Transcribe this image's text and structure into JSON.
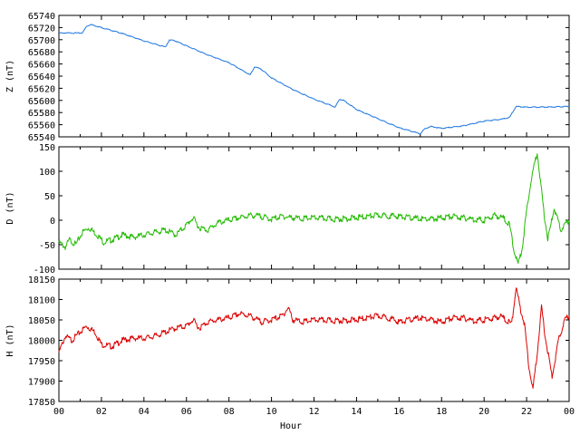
{
  "chart_data": [
    {
      "type": "line",
      "ylabel": "Z (nT)",
      "ylim": [
        65540,
        65740
      ],
      "yticks": [
        65540,
        65560,
        65580,
        65600,
        65620,
        65640,
        65660,
        65680,
        65700,
        65720,
        65740
      ],
      "xlim": [
        0,
        24
      ],
      "grid": false,
      "series": [
        {
          "color": "#1f77e0",
          "x": [
            0,
            0.5,
            1.1,
            1.3,
            1.5,
            2,
            3,
            4,
            5,
            5.2,
            5.4,
            6,
            7,
            8,
            9,
            9.2,
            9.5,
            10,
            11,
            12,
            13,
            13.2,
            13.4,
            14,
            15,
            16,
            17,
            17.2,
            17.5,
            18,
            19,
            20,
            20.8,
            21.2,
            21.5,
            22,
            23,
            24
          ],
          "y": [
            65711,
            65711,
            65711,
            65722,
            65725,
            65720,
            65710,
            65698,
            65688,
            65699,
            65699,
            65690,
            65675,
            65662,
            65642,
            65655,
            65652,
            65637,
            65618,
            65602,
            65589,
            65602,
            65600,
            65585,
            65570,
            65555,
            65545,
            65553,
            65557,
            65554,
            65558,
            65566,
            65569,
            65572,
            65590,
            65589,
            65589,
            65590
          ]
        }
      ]
    },
    {
      "type": "line",
      "ylabel": "D (nT)",
      "ylim": [
        -100,
        150
      ],
      "yticks": [
        -100,
        -50,
        0,
        50,
        100,
        150
      ],
      "xlim": [
        0,
        24
      ],
      "grid": false,
      "series": [
        {
          "color": "#22bb00",
          "x": [
            0,
            0.3,
            0.5,
            0.8,
            1.1,
            1.4,
            1.8,
            2.1,
            2.5,
            3,
            3.5,
            4,
            4.5,
            5,
            5.5,
            6,
            6.3,
            6.6,
            7,
            7.5,
            8,
            8.5,
            9,
            9.5,
            10,
            10.5,
            11,
            11.5,
            12,
            13,
            14,
            15,
            16,
            16.5,
            17,
            17.5,
            18,
            18.5,
            19,
            19.5,
            20,
            20.5,
            20.9,
            21.2,
            21.4,
            21.6,
            21.8,
            22,
            22.2,
            22.5,
            22.8,
            23,
            23.3,
            23.6,
            24
          ],
          "y": [
            -45,
            -55,
            -40,
            -50,
            -25,
            -15,
            -30,
            -45,
            -40,
            -30,
            -35,
            -30,
            -25,
            -20,
            -30,
            -10,
            5,
            -15,
            -20,
            -5,
            0,
            5,
            10,
            8,
            2,
            8,
            5,
            3,
            5,
            2,
            5,
            10,
            8,
            5,
            3,
            2,
            5,
            8,
            5,
            2,
            0,
            10,
            5,
            -10,
            -60,
            -90,
            -55,
            20,
            80,
            140,
            20,
            -40,
            25,
            -20,
            0
          ]
        }
      ]
    },
    {
      "type": "line",
      "ylabel": "H (nT)",
      "xlabel": "Hour",
      "ylim": [
        17850,
        18150
      ],
      "yticks": [
        17850,
        17900,
        17950,
        18000,
        18050,
        18100,
        18150
      ],
      "xlim": [
        0,
        24
      ],
      "xticks": [
        "00",
        "02",
        "04",
        "06",
        "08",
        "10",
        "12",
        "14",
        "16",
        "18",
        "20",
        "22",
        "00"
      ],
      "grid": false,
      "series": [
        {
          "color": "#dd0000",
          "x": [
            0,
            0.3,
            0.6,
            1,
            1.3,
            1.7,
            2,
            2.5,
            3,
            3.5,
            4,
            4.5,
            5,
            5.5,
            6,
            6.3,
            6.6,
            7,
            7.5,
            8,
            8.5,
            9,
            9.5,
            10,
            10.5,
            10.8,
            11,
            11.5,
            12,
            13,
            14,
            14.5,
            15,
            15.5,
            16,
            16.5,
            17,
            17.5,
            18,
            18.5,
            19,
            19.5,
            20,
            20.5,
            20.8,
            21,
            21.3,
            21.5,
            21.7,
            21.9,
            22.1,
            22.3,
            22.5,
            22.7,
            22.9,
            23.2,
            23.5,
            23.8,
            24
          ],
          "y": [
            17970,
            18010,
            18000,
            18020,
            18035,
            18020,
            17990,
            17985,
            18000,
            18005,
            18005,
            18010,
            18020,
            18030,
            18035,
            18050,
            18030,
            18045,
            18050,
            18055,
            18065,
            18060,
            18045,
            18050,
            18060,
            18080,
            18050,
            18045,
            18050,
            18048,
            18050,
            18055,
            18060,
            18055,
            18045,
            18050,
            18055,
            18050,
            18045,
            18055,
            18055,
            18048,
            18050,
            18055,
            18060,
            18050,
            18040,
            18130,
            18080,
            18040,
            17940,
            17880,
            17970,
            18080,
            18000,
            17910,
            18000,
            18050,
            18060
          ]
        }
      ]
    }
  ]
}
